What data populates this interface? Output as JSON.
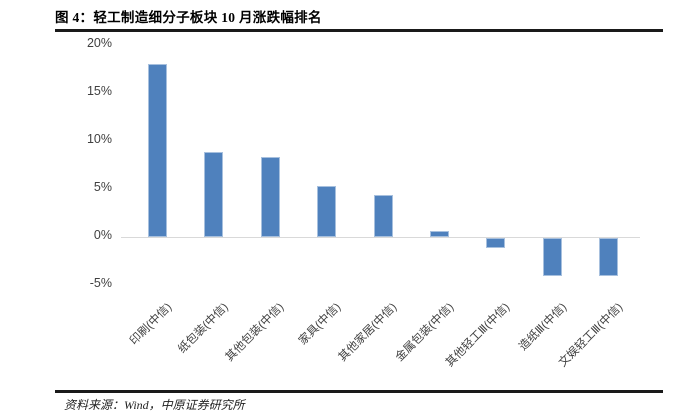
{
  "figure": {
    "title": "图 4：轻工制造细分子板块 10 月涨跌幅排名",
    "source": "资料来源：Wind，中原证券研究所"
  },
  "chart_data": {
    "type": "bar",
    "title": "轻工制造细分子板块 10 月涨跌幅排名",
    "categories": [
      "印刷(中信)",
      "纸包装(中信)",
      "其他包装(中信)",
      "家具(中信)",
      "其他家居(中信)",
      "金属包装(中信)",
      "其他轻工Ⅲ(中信)",
      "造纸Ⅲ(中信)",
      "文娱轻工Ⅲ(中信)"
    ],
    "values": [
      18.0,
      8.8,
      8.3,
      5.3,
      4.4,
      0.6,
      -1.0,
      -3.9,
      -3.9
    ],
    "unit": "%",
    "xlabel": "",
    "ylabel": "",
    "ylim": [
      -5,
      20
    ],
    "yticks": [
      20,
      15,
      10,
      5,
      0,
      -5
    ],
    "ytick_labels": [
      "20%",
      "15%",
      "10%",
      "5%",
      "0%",
      "-5%"
    ],
    "grid": false,
    "legend": false,
    "bar_color": "#4f81bd",
    "bar_border_color": "#a7c0de",
    "axis_line_color": "#d9d9d9",
    "tick_label_color": "#404040"
  }
}
